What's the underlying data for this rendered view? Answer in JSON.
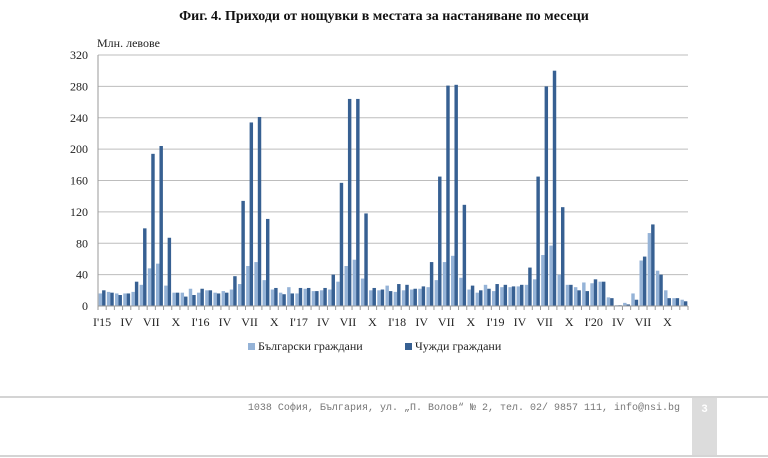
{
  "chart_data": {
    "type": "bar",
    "title": "Фиг. 4. Приходи от нощувки в местата за настаняване по месеци",
    "ylabel": "Млн. левове",
    "xlabel": "",
    "ylim": [
      0,
      320
    ],
    "yticks": [
      0,
      40,
      80,
      120,
      160,
      200,
      240,
      280,
      320
    ],
    "grid": true,
    "legend_position": "bottom",
    "x_tick_labels": [
      "I'15",
      "IV",
      "VII",
      "X",
      "I'16",
      "IV",
      "VII",
      "X",
      "I'17",
      "IV",
      "VII",
      "X",
      "I'18",
      "IV",
      "VII",
      "X",
      "I'19",
      "IV",
      "VII",
      "X",
      "I'20",
      "IV",
      "VII",
      "X"
    ],
    "series": [
      {
        "name": "Български граждани",
        "color": "#95b3d7",
        "values": [
          16,
          18,
          16,
          16,
          18,
          27,
          48,
          54,
          26,
          17,
          17,
          22,
          17,
          20,
          17,
          19,
          21,
          28,
          51,
          56,
          33,
          21,
          17,
          24,
          16,
          22,
          19,
          20,
          21,
          31,
          51,
          59,
          35,
          20,
          20,
          26,
          18,
          20,
          21,
          22,
          24,
          33,
          56,
          64,
          36,
          21,
          17,
          27,
          19,
          24,
          24,
          25,
          27,
          34,
          65,
          77,
          40,
          27,
          24,
          30,
          29,
          31,
          11,
          1,
          4,
          16,
          58,
          93,
          45,
          20,
          10,
          8
        ]
      },
      {
        "name": "Чужди граждани",
        "color": "#376092",
        "values": [
          20,
          17,
          14,
          16,
          31,
          99,
          194,
          204,
          87,
          17,
          12,
          14,
          22,
          20,
          16,
          17,
          38,
          134,
          234,
          241,
          111,
          23,
          15,
          16,
          23,
          23,
          19,
          23,
          40,
          157,
          264,
          264,
          118,
          23,
          21,
          19,
          28,
          27,
          22,
          25,
          56,
          165,
          281,
          282,
          129,
          26,
          20,
          22,
          28,
          27,
          25,
          27,
          49,
          165,
          280,
          300,
          126,
          27,
          20,
          19,
          34,
          31,
          10,
          1,
          2,
          8,
          63,
          104,
          40,
          10,
          10,
          6
        ]
      }
    ]
  },
  "footer": {
    "address": "1038 София, България, ул. „П. Волов“ № 2, тел. 02/ 9857 111, info@nsi.bg",
    "page_number": "3"
  }
}
